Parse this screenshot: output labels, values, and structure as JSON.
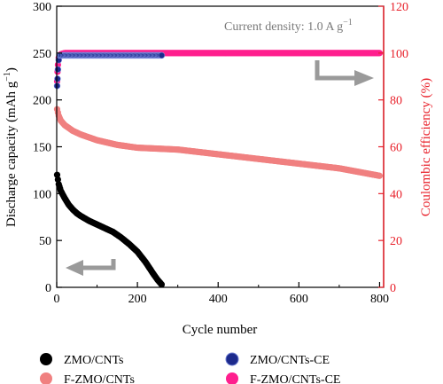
{
  "chart_data": {
    "type": "scatter",
    "annotation": "Current density: 1.0 A g",
    "annotation_sup": "−1",
    "xlabel": "Cycle number",
    "ylabel_left": "Discharge capacity (mAh g",
    "ylabel_left_sup": "−1",
    "ylabel_left_end": ")",
    "ylabel_right": "Coulombic efficiency (%)",
    "xlim": [
      0,
      810
    ],
    "ylim_left": [
      0,
      300
    ],
    "ylim_right": [
      0,
      120
    ],
    "x_ticks": [
      "0",
      "200",
      "400",
      "600",
      "800"
    ],
    "x_tick_values": [
      0,
      200,
      400,
      600,
      800
    ],
    "y_left_ticks": [
      "0",
      "50",
      "100",
      "150",
      "200",
      "250",
      "300"
    ],
    "y_left_tick_values": [
      0,
      50,
      100,
      150,
      200,
      250,
      300
    ],
    "y_right_ticks": [
      "0",
      "20",
      "40",
      "60",
      "80",
      "100",
      "120"
    ],
    "y_right_tick_values": [
      0,
      20,
      40,
      60,
      80,
      100,
      120
    ],
    "colors": {
      "zmo": "#000000",
      "fzmo": "#f08080",
      "zmo_ce": "#1c2a8c",
      "fzmo_ce": "#ff1f8e",
      "right_axis": "#e8202a",
      "arrow": "#9a9a9a"
    },
    "legend": {
      "placement": "bottom",
      "entries": [
        "ZMO/CNTs",
        "F-ZMO/CNTs",
        "ZMO/CNTs-CE",
        "F-ZMO/CNTs-CE"
      ]
    },
    "series": [
      {
        "name": "ZMO/CNTs",
        "axis": "left",
        "x": [
          1,
          5,
          10,
          20,
          30,
          40,
          50,
          60,
          80,
          100,
          120,
          140,
          160,
          180,
          200,
          220,
          240,
          250,
          260
        ],
        "y": [
          120,
          110,
          103,
          95,
          88,
          83,
          79,
          76,
          71,
          67,
          63,
          59,
          53,
          46,
          38,
          27,
          14,
          8,
          3
        ]
      },
      {
        "name": "F-ZMO/CNTs",
        "axis": "left",
        "x": [
          1,
          5,
          10,
          20,
          40,
          60,
          80,
          100,
          150,
          200,
          250,
          300,
          400,
          500,
          600,
          700,
          800
        ],
        "y": [
          190,
          183,
          178,
          173,
          167,
          163,
          160,
          157,
          152,
          149,
          148,
          147,
          142,
          137,
          132,
          127,
          119
        ]
      },
      {
        "name": "ZMO/CNTs-CE",
        "axis": "right",
        "x": [
          1,
          2,
          3,
          5,
          8,
          10,
          20,
          40,
          60,
          80,
          100,
          120,
          140,
          160,
          180,
          200,
          220,
          240,
          260
        ],
        "y": [
          86,
          89,
          93,
          97,
          99,
          99,
          99,
          99,
          99,
          99,
          99,
          99,
          99,
          99,
          99,
          99,
          99,
          99,
          99
        ]
      },
      {
        "name": "F-ZMO/CNTs-CE",
        "axis": "right",
        "x": [
          1,
          2,
          3,
          5,
          10,
          20,
          50,
          100,
          200,
          300,
          400,
          500,
          600,
          700,
          800
        ],
        "y": [
          88,
          92,
          95,
          98,
          99.5,
          100,
          100,
          100,
          100,
          100,
          100,
          100,
          100,
          100,
          100
        ]
      }
    ]
  }
}
